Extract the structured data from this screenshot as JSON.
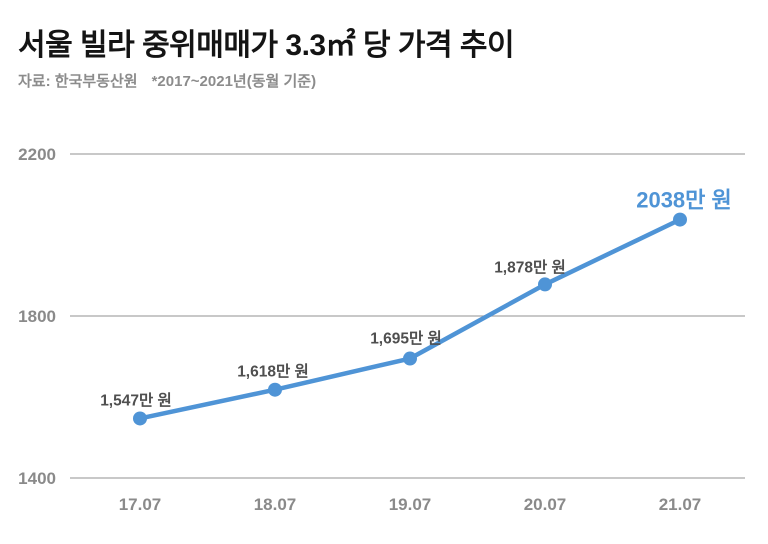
{
  "header": {
    "title": "서울 빌라 중위매매가 3.3㎡ 당 가격 추이",
    "source": "자료: 한국부동산원",
    "note": "*2017~2021년(동월 기준)"
  },
  "chart_data": {
    "type": "line",
    "title": "서울 빌라 중위매매가 3.3㎡ 당 가격 추이",
    "xlabel": "",
    "ylabel": "",
    "categories": [
      "17.07",
      "18.07",
      "19.07",
      "20.07",
      "21.07"
    ],
    "values": [
      1547,
      1618,
      1695,
      1878,
      2038
    ],
    "point_labels": [
      "1,547만 원",
      "1,618만 원",
      "1,695만 원",
      "1,878만 원",
      "2038만 원"
    ],
    "yticks": [
      1400,
      1800,
      2200
    ],
    "ylim": [
      1400,
      2200
    ],
    "grid": "horizontal",
    "legend": "none",
    "highlight_last_point": true,
    "colors": {
      "line": "#4f94d6",
      "marker": "#4f94d6",
      "highlight_label": "#4f94d6",
      "point_label": "#4f4f4f",
      "tick_label": "#8a8a8a",
      "gridline": "#a6a6a6",
      "title": "#141414",
      "subtitle": "#8c8c8c",
      "background": "#ffffff"
    }
  }
}
